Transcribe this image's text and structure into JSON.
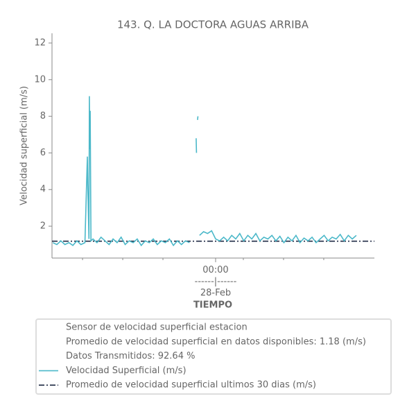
{
  "chart_data": {
    "type": "line",
    "title": "143. Q. LA DOCTORA AGUAS ARRIBA",
    "y_label": "Velocidad superficial (m/s)",
    "x_label": "TIEMPO",
    "xlim": [
      -8.14,
      7.9
    ],
    "xticks": [
      {
        "value": 0,
        "label": "00:00\n------|------\n28-Feb"
      }
    ],
    "xminorticks": [
      -6.62,
      -4.62,
      -2.62,
      1.38,
      3.38,
      5.38
    ],
    "ylim": [
      0.26,
      12.53
    ],
    "yticks": [
      2,
      4,
      6,
      8,
      10,
      12
    ],
    "legend_notes": [
      "Sensor de velocidad superficial estacion",
      "Promedio de velocidad superficial en datos disponibles: 1.18 (m/s)",
      "Datos Transmitidos: 92.64 %"
    ],
    "reference_line": {
      "name": "Promedio de velocidad superficial ultimos 30 dias (m/s)",
      "color": "#1f2a44",
      "value": 1.18
    },
    "x": [
      -8.1,
      -7.9,
      -7.7,
      -7.5,
      -7.3,
      -7.1,
      -6.9,
      -6.7,
      -6.5,
      -6.38,
      -6.36,
      -6.3,
      -6.28,
      -6.26,
      -6.24,
      -6.2,
      -6.1,
      -5.9,
      -5.7,
      -5.5,
      -5.3,
      -5.1,
      -4.9,
      -4.7,
      -4.5,
      -4.3,
      -4.1,
      -3.9,
      -3.7,
      -3.5,
      -3.3,
      -3.1,
      -2.9,
      -2.7,
      -2.5,
      -2.3,
      -2.1,
      -1.9,
      -1.7,
      -1.5,
      -1.3,
      -1.1,
      -0.97,
      -0.95,
      -0.92,
      -0.9,
      -0.88,
      -0.86,
      -0.8,
      -0.6,
      -0.4,
      -0.2,
      0,
      0.2,
      0.4,
      0.6,
      0.8,
      1.0,
      1.2,
      1.4,
      1.6,
      1.8,
      2.0,
      2.2,
      2.4,
      2.6,
      2.8,
      3.0,
      3.2,
      3.4,
      3.6,
      3.8,
      4.0,
      4.2,
      4.4,
      4.6,
      4.8,
      5.0,
      5.2,
      5.4,
      5.6,
      5.8,
      6.0,
      6.2,
      6.4,
      6.6,
      6.8,
      7.0
    ],
    "series": [
      {
        "name": "Velocidad Superficial (m/s)",
        "color": "#4bb8c9",
        "values": [
          1.1,
          1.0,
          1.2,
          1.0,
          1.1,
          0.95,
          1.2,
          1.0,
          1.1,
          5.8,
          4.3,
          1.3,
          9.1,
          6.2,
          8.3,
          1.2,
          1.3,
          1.1,
          1.4,
          1.2,
          1.0,
          1.3,
          1.1,
          1.4,
          1.0,
          1.2,
          1.1,
          1.3,
          0.95,
          1.2,
          1.1,
          1.3,
          1.0,
          1.2,
          1.1,
          1.3,
          0.95,
          1.2,
          1.0,
          1.2,
          1.1,
          null,
          6.8,
          6.0,
          null,
          7.8,
          8.0,
          null,
          1.5,
          1.7,
          1.6,
          1.75,
          1.3,
          1.2,
          1.4,
          1.2,
          1.5,
          1.3,
          1.6,
          1.2,
          1.5,
          1.3,
          1.6,
          1.2,
          1.4,
          1.3,
          1.5,
          1.2,
          1.45,
          1.1,
          1.4,
          1.2,
          1.5,
          1.1,
          1.35,
          1.2,
          1.4,
          1.1,
          1.3,
          1.5,
          1.2,
          1.4,
          1.3,
          1.55,
          1.2,
          1.5,
          1.3,
          1.5
        ]
      }
    ]
  }
}
